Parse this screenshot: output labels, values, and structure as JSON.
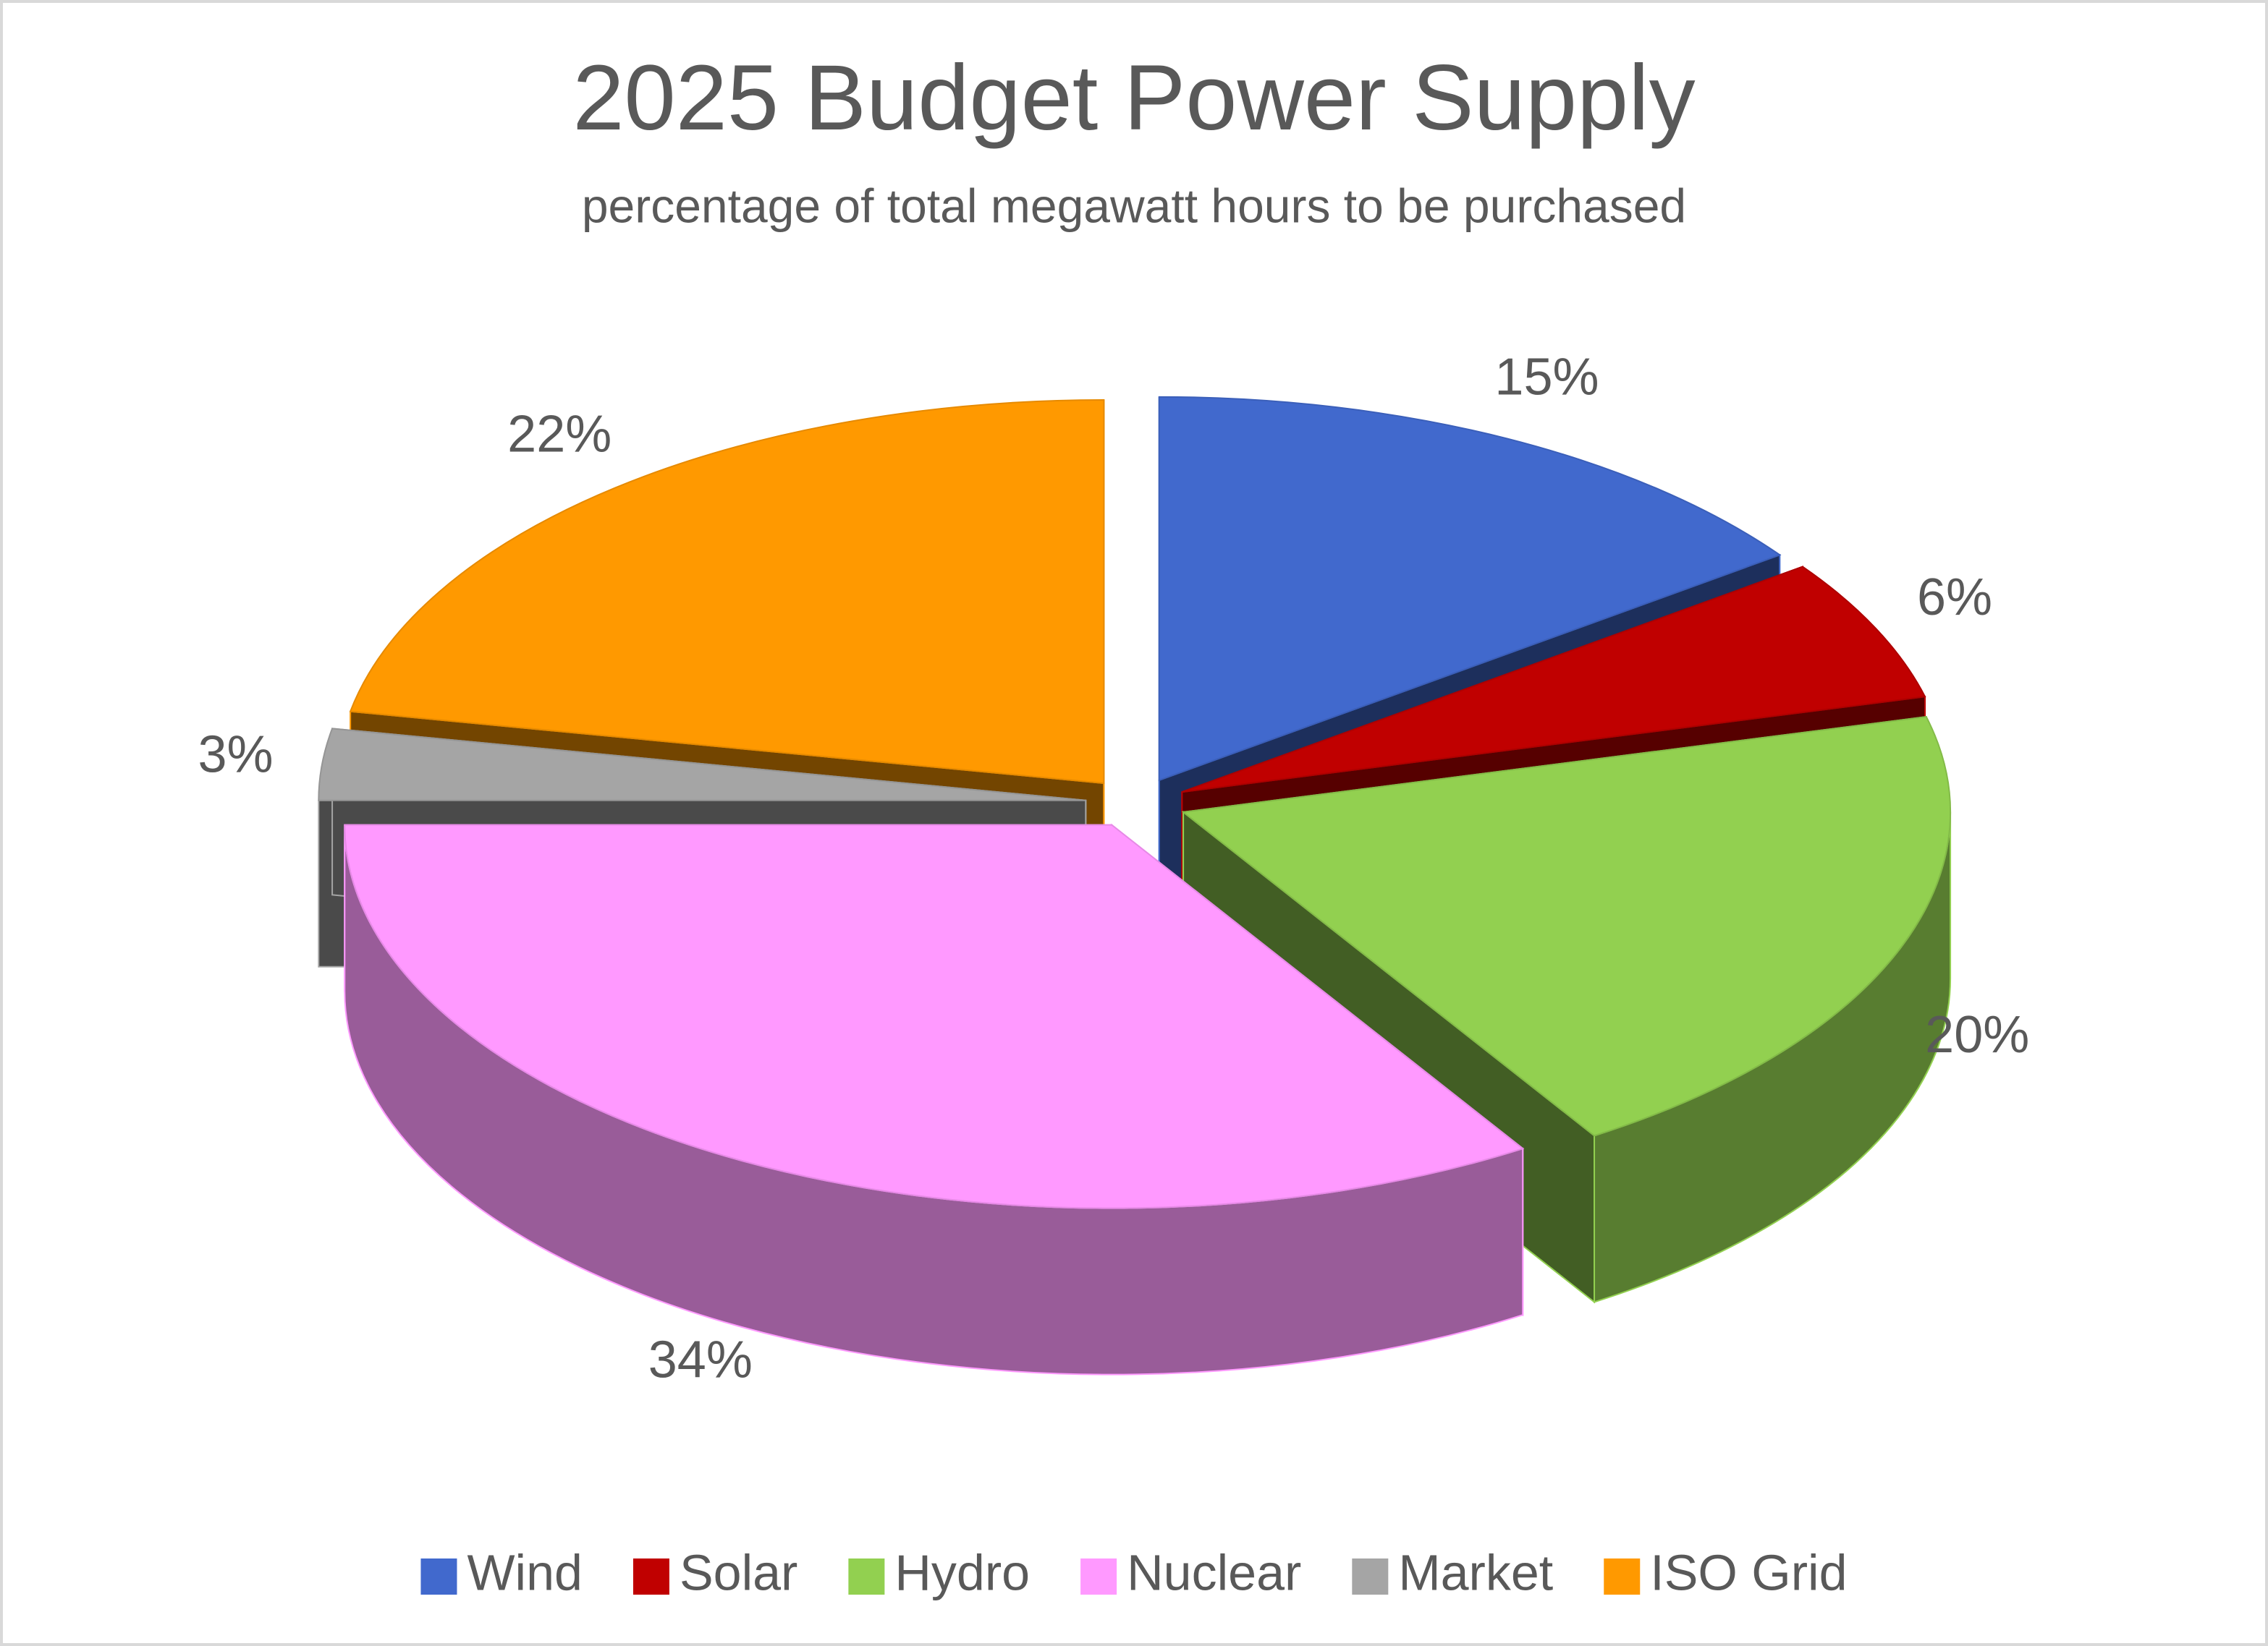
{
  "chart_data": {
    "type": "pie3d",
    "title": "2025 Budget Power Supply",
    "subtitle": "percentage of total megawatt hours to be purchased",
    "categories": [
      "Wind",
      "Solar",
      "Hydro",
      "Nuclear",
      "Market",
      "ISO Grid"
    ],
    "values": [
      15,
      6,
      20,
      34,
      3,
      22
    ],
    "value_labels": [
      "15%",
      "6%",
      "20%",
      "34%",
      "3%",
      "22%"
    ],
    "colors": [
      "#4169cd",
      "#c00000",
      "#92d050",
      "#ff99ff",
      "#a5a5a5",
      "#ff9900"
    ],
    "legend": "bottom"
  }
}
